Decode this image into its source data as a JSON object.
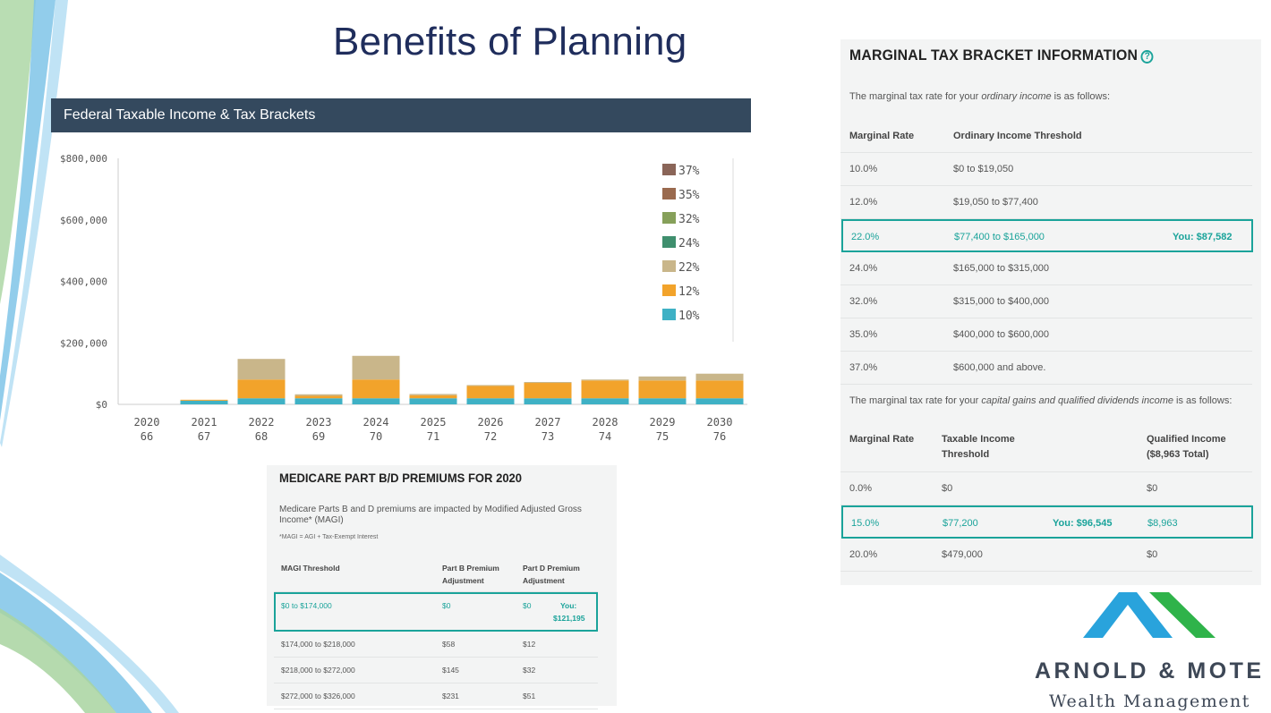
{
  "slide": {
    "title": "Benefits of Planning"
  },
  "chart_panel": {
    "header": "Federal Taxable Income & Tax Brackets"
  },
  "chart_data": {
    "type": "bar",
    "stacked": true,
    "title": "Federal Taxable Income & Tax Brackets",
    "xlabel": "",
    "ylabel": "",
    "ylim": [
      0,
      800000
    ],
    "y_ticks": [
      "$800,000",
      "$600,000",
      "$400,000",
      "$200,000",
      "$0"
    ],
    "categories": [
      "2020",
      "2021",
      "2022",
      "2023",
      "2024",
      "2025",
      "2026",
      "2027",
      "2028",
      "2029",
      "2030"
    ],
    "ages": [
      "66",
      "67",
      "68",
      "69",
      "70",
      "71",
      "72",
      "73",
      "74",
      "75",
      "76"
    ],
    "legend_position": "top-right",
    "series": [
      {
        "name": "10%",
        "color": "#3fb1c5",
        "values": [
          0,
          12000,
          19750,
          19750,
          19750,
          19750,
          19750,
          19750,
          19750,
          19750,
          19750
        ]
      },
      {
        "name": "12%",
        "color": "#f2a32b",
        "values": [
          0,
          3000,
          61000,
          8000,
          61000,
          10000,
          40000,
          50000,
          58000,
          58000,
          58000
        ]
      },
      {
        "name": "22%",
        "color": "#c9b68a",
        "values": [
          0,
          0,
          67000,
          5000,
          77000,
          4000,
          3000,
          3000,
          3000,
          13000,
          22000
        ]
      },
      {
        "name": "24%",
        "color": "#3f8f6e",
        "values": [
          0,
          0,
          0,
          0,
          0,
          0,
          0,
          0,
          0,
          0,
          0
        ]
      },
      {
        "name": "32%",
        "color": "#86a05a",
        "values": [
          0,
          0,
          0,
          0,
          0,
          0,
          0,
          0,
          0,
          0,
          0
        ]
      },
      {
        "name": "35%",
        "color": "#9a6a4e",
        "values": [
          0,
          0,
          0,
          0,
          0,
          0,
          0,
          0,
          0,
          0,
          0
        ]
      },
      {
        "name": "37%",
        "color": "#8a6558",
        "values": [
          0,
          0,
          0,
          0,
          0,
          0,
          0,
          0,
          0,
          0,
          0
        ]
      }
    ]
  },
  "tax_panel": {
    "title": "MARGINAL TAX BRACKET INFORMATION",
    "help_icon": "?",
    "ordinary_intro_pre": "The marginal tax rate for your ",
    "ordinary_intro_em": "ordinary income",
    "ordinary_intro_post": " is as follows:",
    "ordinary_headers": {
      "rate": "Marginal Rate",
      "threshold": "Ordinary Income Threshold"
    },
    "ordinary_rows": [
      {
        "rate": "10.0%",
        "threshold": "$0 to $19,050",
        "you": ""
      },
      {
        "rate": "12.0%",
        "threshold": "$19,050 to $77,400",
        "you": ""
      },
      {
        "rate": "22.0%",
        "threshold": "$77,400 to $165,000",
        "you": "You: $87,582"
      },
      {
        "rate": "24.0%",
        "threshold": "$165,000 to $315,000",
        "you": ""
      },
      {
        "rate": "32.0%",
        "threshold": "$315,000 to $400,000",
        "you": ""
      },
      {
        "rate": "35.0%",
        "threshold": "$400,000 to $600,000",
        "you": ""
      },
      {
        "rate": "37.0%",
        "threshold": "$600,000 and above.",
        "you": ""
      }
    ],
    "cg_intro_pre": "The marginal tax rate for your ",
    "cg_intro_em": "capital gains and qualified dividends income",
    "cg_intro_post": " is as follows:",
    "cg_headers": {
      "rate": "Marginal Rate",
      "threshold_1": "Taxable Income",
      "threshold_2": "Threshold",
      "qualified_1": "Qualified Income",
      "qualified_2": "($8,963 Total)"
    },
    "cg_rows": [
      {
        "rate": "0.0%",
        "threshold": "$0",
        "you": "",
        "qualified": "$0"
      },
      {
        "rate": "15.0%",
        "threshold": "$77,200",
        "you": "You: $96,545",
        "qualified": "$8,963"
      },
      {
        "rate": "20.0%",
        "threshold": "$479,000",
        "you": "",
        "qualified": "$0"
      }
    ]
  },
  "medicare_panel": {
    "title": "MEDICARE PART B/D PREMIUMS FOR 2020",
    "desc": "Medicare Parts B and D premiums are impacted by Modified Adjusted Gross Income* (MAGI)",
    "note": "*MAGI = AGI + Tax-Exempt Interest",
    "headers": {
      "threshold": "MAGI Threshold",
      "part_b_1": "Part B Premium",
      "part_b_2": "Adjustment",
      "part_d_1": "Part D Premium",
      "part_d_2": "Adjustment"
    },
    "rows": [
      {
        "threshold": "$0 to $174,000",
        "part_b": "$0",
        "part_d": "$0",
        "you_1": "You:",
        "you_2": "$121,195"
      },
      {
        "threshold": "$174,000 to $218,000",
        "part_b": "$58",
        "part_d": "$12",
        "you_1": "",
        "you_2": ""
      },
      {
        "threshold": "$218,000 to $272,000",
        "part_b": "$145",
        "part_d": "$32",
        "you_1": "",
        "you_2": ""
      },
      {
        "threshold": "$272,000 to $326,000",
        "part_b": "$231",
        "part_d": "$51",
        "you_1": "",
        "you_2": ""
      }
    ]
  },
  "logo": {
    "name": "ARNOLD & MOTE",
    "sub": "Wealth Management",
    "blue": "#29a3dc",
    "green": "#2fb34a"
  }
}
